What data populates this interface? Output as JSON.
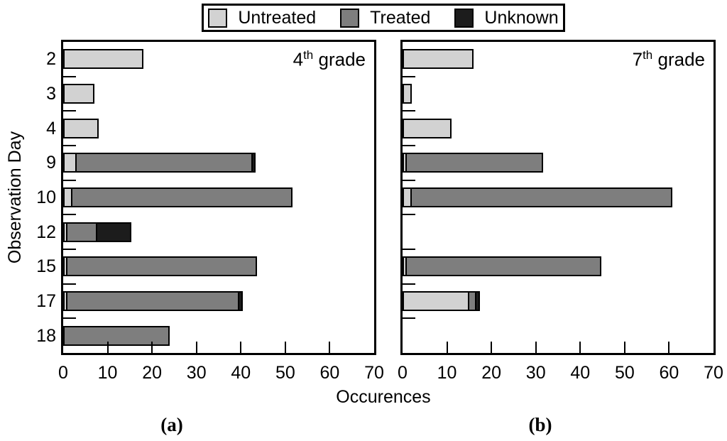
{
  "figure": {
    "x_axis_label": "Occurences",
    "y_axis_label": "Observation Day",
    "x_ticks": [
      0,
      10,
      20,
      30,
      40,
      50,
      60,
      70
    ],
    "x_max": 70
  },
  "colors": {
    "untreated": "#d2d2d2",
    "treated": "#7e7e7e",
    "unknown": "#1c1c1c",
    "outline": "#000000",
    "background": "#ffffff"
  },
  "legend": {
    "items": [
      {
        "label": "Untreated",
        "color": "#d2d2d2"
      },
      {
        "label": "Treated",
        "color": "#7e7e7e"
      },
      {
        "label": "Unknown",
        "color": "#1c1c1c"
      }
    ]
  },
  "chart_data": [
    {
      "type": "bar",
      "orientation": "horizontal",
      "stacked": true,
      "title": {
        "num": "4",
        "sup": "th",
        "rest": " grade"
      },
      "caption": "(a)",
      "xlabel": "Occurences",
      "ylabel": "Observation Day",
      "xlim": [
        0,
        70
      ],
      "grid": false,
      "categories": [
        "2",
        "3",
        "4",
        "9",
        "10",
        "12",
        "15",
        "17",
        "18"
      ],
      "series": [
        {
          "name": "Untreated",
          "color": "#d2d2d2",
          "values": [
            18,
            7,
            8,
            3,
            2,
            1,
            1,
            1,
            0
          ]
        },
        {
          "name": "Treated",
          "color": "#7e7e7e",
          "values": [
            0,
            0,
            0,
            40,
            50,
            7,
            43,
            39,
            24
          ]
        },
        {
          "name": "Unknown",
          "color": "#1c1c1c",
          "values": [
            0,
            0,
            0,
            1,
            0,
            8,
            0,
            1,
            0
          ]
        }
      ]
    },
    {
      "type": "bar",
      "orientation": "horizontal",
      "stacked": true,
      "title": {
        "num": "7",
        "sup": "th",
        "rest": " grade"
      },
      "caption": "(b)",
      "xlabel": "Occurences",
      "ylabel": "Observation Day",
      "xlim": [
        0,
        70
      ],
      "grid": false,
      "categories": [
        "2",
        "3",
        "4",
        "9",
        "10",
        "12",
        "15",
        "17",
        "18"
      ],
      "series": [
        {
          "name": "Untreated",
          "color": "#d2d2d2",
          "values": [
            16,
            2,
            11,
            1,
            2,
            0,
            1,
            15,
            0
          ]
        },
        {
          "name": "Treated",
          "color": "#7e7e7e",
          "values": [
            0,
            0,
            0,
            31,
            59,
            0,
            44,
            2,
            0
          ]
        },
        {
          "name": "Unknown",
          "color": "#1c1c1c",
          "values": [
            0,
            0,
            0,
            0,
            0,
            0,
            0,
            1,
            0
          ]
        }
      ]
    }
  ]
}
